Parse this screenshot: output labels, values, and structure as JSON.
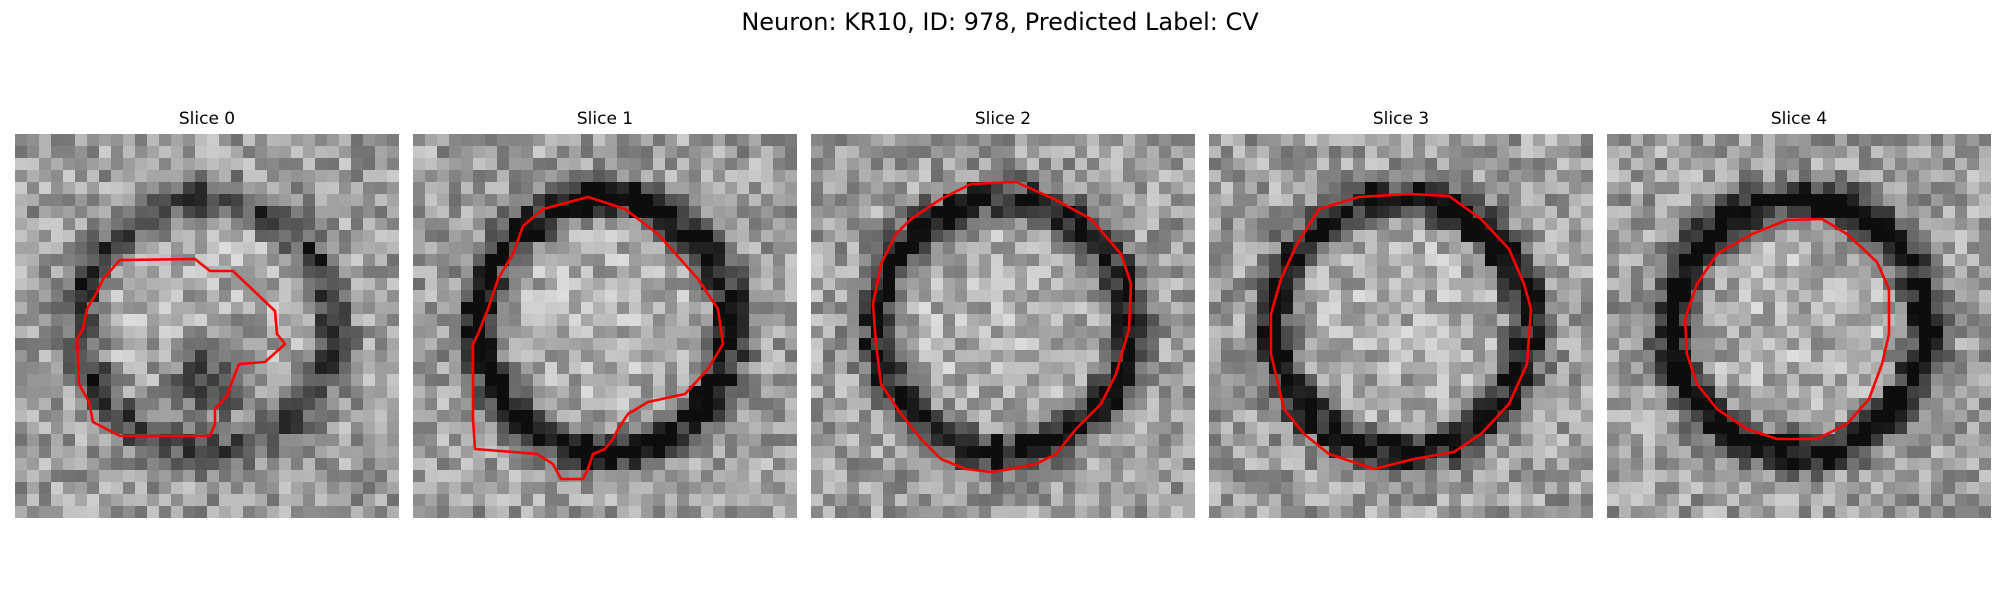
{
  "figure": {
    "title": "Neuron: KR10, ID: 978, Predicted Label: CV"
  },
  "contour_color": "#ff0000",
  "slices": [
    {
      "title": "Slice 0",
      "seed": 11,
      "ring_strength": 0.45,
      "dark_blob": true
    },
    {
      "title": "Slice 1",
      "seed": 23,
      "ring_strength": 0.75,
      "dark_blob": false
    },
    {
      "title": "Slice 2",
      "seed": 37,
      "ring_strength": 0.7,
      "dark_blob": false
    },
    {
      "title": "Slice 3",
      "seed": 41,
      "ring_strength": 0.75,
      "dark_blob": false
    },
    {
      "title": "Slice 4",
      "seed": 53,
      "ring_strength": 0.8,
      "dark_blob": false
    }
  ]
}
